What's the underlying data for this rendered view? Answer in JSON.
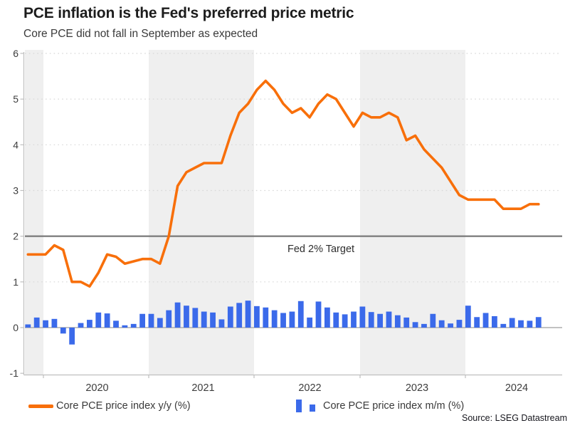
{
  "header": {
    "title": "PCE inflation is the Fed's preferred price metric",
    "subtitle": "Core PCE did not fall in September as expected"
  },
  "source": {
    "text": "Source: LSEG Datastream"
  },
  "annotations": {
    "fed_target_label": "Fed 2% Target"
  },
  "legend": [
    {
      "label": "Core PCE price index y/y (%)",
      "type": "line",
      "color": "#F86F0A"
    },
    {
      "label": "Core PCE price index m/m (%)",
      "type": "bar",
      "color": "#3B6AEA"
    }
  ],
  "colors": {
    "line_yy": "#F86F0A",
    "bar_mm": "#3B6AEA",
    "target_line": "#7F7F7F",
    "zero_line": "#ADADAD",
    "spine": "#BFBFBF",
    "gridline": "#D8D8D8",
    "band_gray": "#EFEFEF",
    "axis_text": "#3d3d3d"
  },
  "chart_data": {
    "type": "line+bar",
    "title": "PCE inflation is the Fed's preferred price metric",
    "subtitle": "Core PCE did not fall in September as expected",
    "months": [
      "2019-11",
      "2019-12",
      "2020-01",
      "2020-02",
      "2020-03",
      "2020-04",
      "2020-05",
      "2020-06",
      "2020-07",
      "2020-08",
      "2020-09",
      "2020-10",
      "2020-11",
      "2020-12",
      "2021-01",
      "2021-02",
      "2021-03",
      "2021-04",
      "2021-05",
      "2021-06",
      "2021-07",
      "2021-08",
      "2021-09",
      "2021-10",
      "2021-11",
      "2021-12",
      "2022-01",
      "2022-02",
      "2022-03",
      "2022-04",
      "2022-05",
      "2022-06",
      "2022-07",
      "2022-08",
      "2022-09",
      "2022-10",
      "2022-11",
      "2022-12",
      "2023-01",
      "2023-02",
      "2023-03",
      "2023-04",
      "2023-05",
      "2023-06",
      "2023-07",
      "2023-08",
      "2023-09",
      "2023-10",
      "2023-11",
      "2023-12",
      "2024-01",
      "2024-02",
      "2024-03",
      "2024-04",
      "2024-05",
      "2024-06",
      "2024-07",
      "2024-08",
      "2024-09"
    ],
    "series": [
      {
        "name": "Core PCE price index y/y (%)",
        "type": "line",
        "color": "#F86F0A",
        "values": [
          1.6,
          1.6,
          1.6,
          1.8,
          1.7,
          1.0,
          1.0,
          0.9,
          1.2,
          1.6,
          1.55,
          1.4,
          1.45,
          1.5,
          1.5,
          1.4,
          2.0,
          3.1,
          3.4,
          3.5,
          3.6,
          3.6,
          3.6,
          4.2,
          4.7,
          4.9,
          5.2,
          5.4,
          5.2,
          4.9,
          4.7,
          4.8,
          4.6,
          4.9,
          5.1,
          5.0,
          4.7,
          4.4,
          4.7,
          4.6,
          4.6,
          4.7,
          4.6,
          4.1,
          4.2,
          3.9,
          3.7,
          3.5,
          3.2,
          2.9,
          2.8,
          2.8,
          2.8,
          2.8,
          2.6,
          2.6,
          2.6,
          2.7,
          2.7
        ]
      },
      {
        "name": "Core PCE price index m/m (%)",
        "type": "bar",
        "color": "#3B6AEA",
        "values": [
          0.07,
          0.22,
          0.16,
          0.19,
          -0.13,
          -0.37,
          0.1,
          0.17,
          0.33,
          0.31,
          0.15,
          0.05,
          0.08,
          0.3,
          0.3,
          0.21,
          0.38,
          0.55,
          0.48,
          0.43,
          0.35,
          0.33,
          0.18,
          0.46,
          0.54,
          0.59,
          0.47,
          0.44,
          0.38,
          0.32,
          0.35,
          0.58,
          0.22,
          0.57,
          0.44,
          0.33,
          0.29,
          0.35,
          0.46,
          0.34,
          0.3,
          0.35,
          0.27,
          0.22,
          0.12,
          0.08,
          0.3,
          0.16,
          0.09,
          0.17,
          0.48,
          0.23,
          0.32,
          0.25,
          0.08,
          0.21,
          0.16,
          0.15,
          0.23
        ]
      }
    ],
    "yaxis": {
      "min": -1,
      "max": 6,
      "ticks": [
        6,
        5,
        4,
        3,
        2,
        1,
        0,
        -1
      ],
      "dotted_gridlines": [
        6,
        5,
        4,
        3,
        1
      ]
    },
    "xaxis": {
      "year_labels": [
        "2020",
        "2021",
        "2022",
        "2023",
        "2024"
      ]
    },
    "reference_line": {
      "value": 2,
      "label": "Fed 2% Target"
    },
    "legend_position": "bottom",
    "background": "alternating light-gray year bands (2021 and 2023 shaded, partial 2019 shaded)"
  }
}
